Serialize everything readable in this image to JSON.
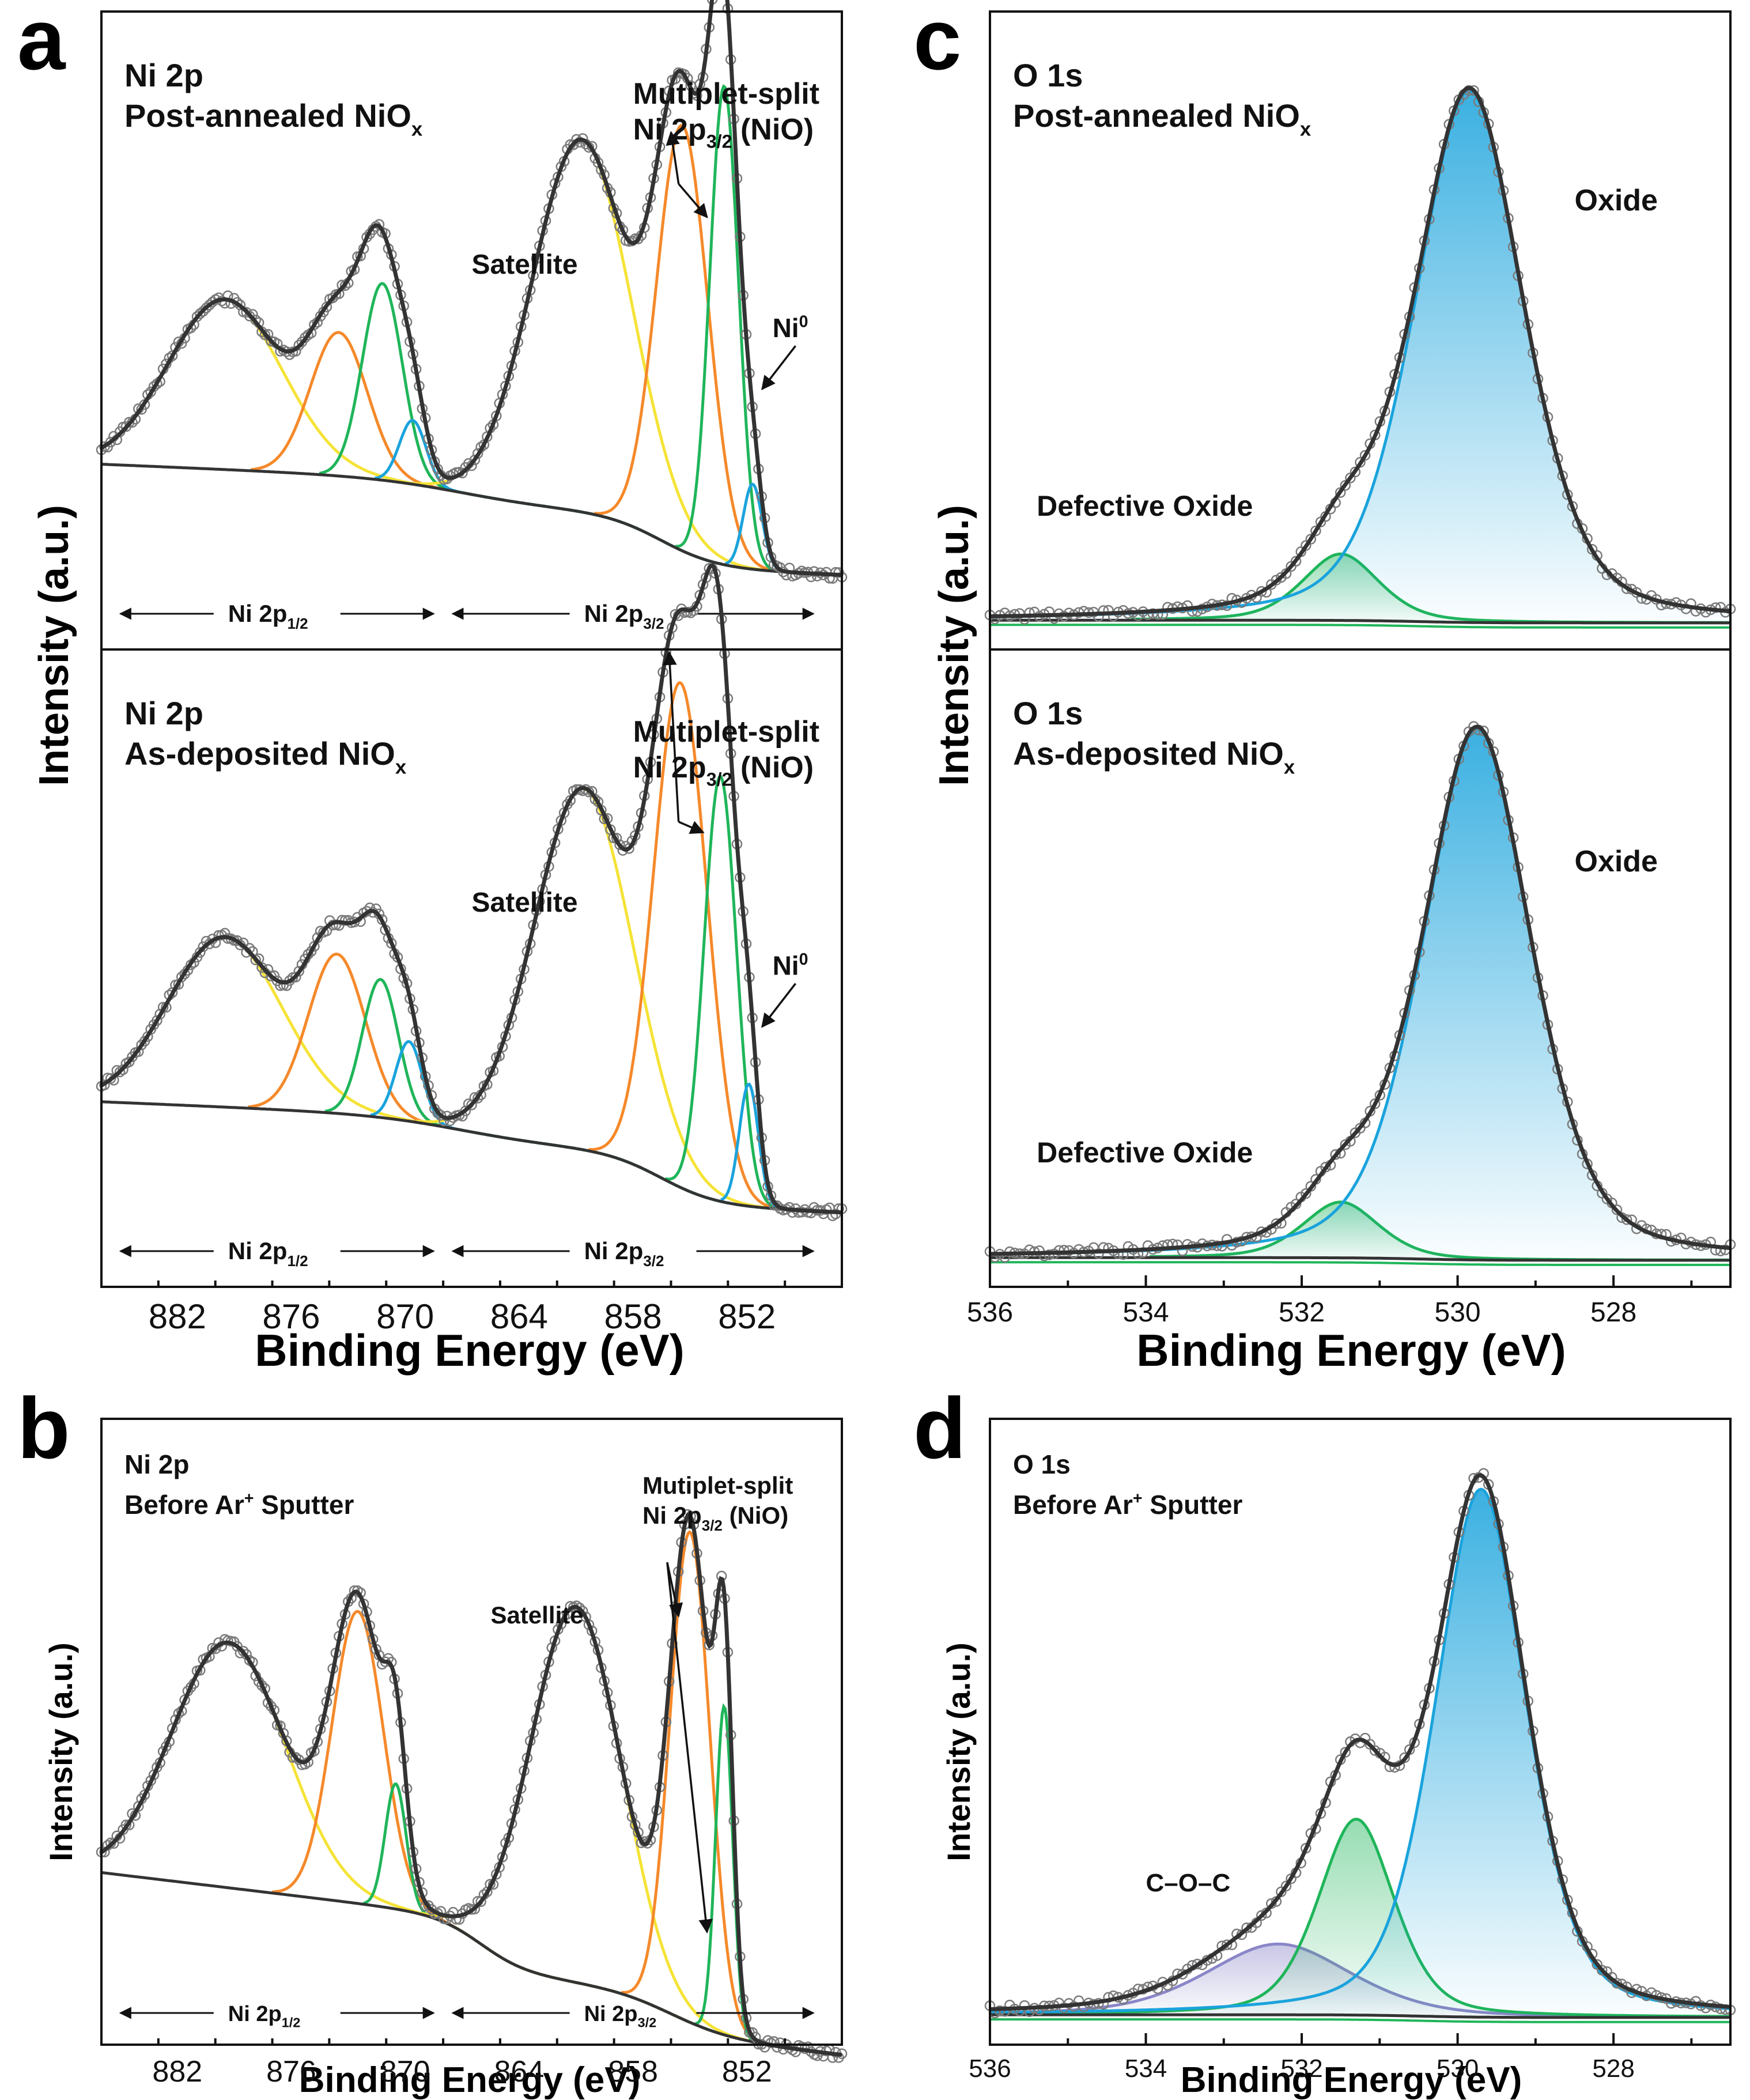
{
  "figure": {
    "panel_letters": [
      "a",
      "b",
      "c",
      "d"
    ],
    "colors": {
      "frame": "#111111",
      "envelope": "#333333",
      "data_circle": "#7a7a7a",
      "yellow": "#f5e336",
      "orange": "#f5892a",
      "green": "#1fb55a",
      "blue": "#1aa3dc",
      "lavender": "#8a86c8",
      "baseline": "#333333"
    }
  },
  "chart_data": [
    {
      "id": "a-top",
      "type": "line",
      "panel": "a",
      "spectrum": "Ni 2p",
      "title_line1": "Ni 2p",
      "title_line2_main": "Post-annealed NiO",
      "title_line2_sub": "x",
      "xlim": [
        886,
        847
      ],
      "ylim": [
        0,
        1.2
      ],
      "show_xticks": false,
      "components": [
        {
          "name": "Ni 2p1/2 satellite",
          "color": "yellow",
          "center": 879.5,
          "amp": 0.32,
          "width": 3.0
        },
        {
          "name": "Ni 2p1/2 multiplet A",
          "color": "orange",
          "center": 873.5,
          "amp": 0.27,
          "width": 1.5
        },
        {
          "name": "Ni 2p1/2 multiplet B",
          "color": "green",
          "center": 871.2,
          "amp": 0.37,
          "width": 1.05
        },
        {
          "name": "Ni 2p1/2 Ni0",
          "color": "blue",
          "center": 869.6,
          "amp": 0.12,
          "width": 0.7
        },
        {
          "name": "Ni 2p3/2 satellite",
          "color": "yellow",
          "center": 860.7,
          "amp": 0.7,
          "width": 2.6
        },
        {
          "name": "Ni 2p3/2 multiplet A",
          "color": "orange",
          "center": 855.4,
          "amp": 0.8,
          "width": 1.35
        },
        {
          "name": "Ni 2p3/2 multiplet B",
          "color": "green",
          "center": 853.2,
          "amp": 0.9,
          "width": 0.75
        },
        {
          "name": "Ni0",
          "color": "blue",
          "center": 851.7,
          "amp": 0.16,
          "width": 0.5
        }
      ],
      "region_labels": [
        {
          "main": "Ni 2p",
          "sub": "1/2",
          "left_be": 885,
          "right_be": 868.5
        },
        {
          "main": "Ni 2p",
          "sub": "3/2",
          "left_be": 867.5,
          "right_be": 848.5
        }
      ],
      "annotations": {
        "multiplet_line1": "Mutiplet-split",
        "multiplet_line2_main": "Ni 2p",
        "multiplet_line2_sub": "3/2",
        "multiplet_line2_tail": " (NiO)",
        "satellite": "Satellite",
        "ni0_main": "Ni",
        "ni0_sup": "0"
      }
    },
    {
      "id": "a-bottom",
      "type": "line",
      "panel": "a",
      "spectrum": "Ni 2p",
      "title_line1": "Ni 2p",
      "title_line2_main": "As-deposited NiO",
      "title_line2_sub": "x",
      "xlim": [
        886,
        847
      ],
      "ylim": [
        0,
        1.2
      ],
      "show_xticks": true,
      "xticks": [
        882,
        876,
        870,
        864,
        858,
        852
      ],
      "xlabel": "Binding Energy (eV)",
      "components": [
        {
          "name": "Ni 2p1/2 satellite",
          "color": "yellow",
          "center": 879.5,
          "amp": 0.32,
          "width": 3.0
        },
        {
          "name": "Ni 2p1/2 multiplet A",
          "color": "orange",
          "center": 873.6,
          "amp": 0.3,
          "width": 1.5
        },
        {
          "name": "Ni 2p1/2 multiplet B",
          "color": "green",
          "center": 871.3,
          "amp": 0.26,
          "width": 0.95
        },
        {
          "name": "Ni 2p1/2 Ni0",
          "color": "blue",
          "center": 869.8,
          "amp": 0.15,
          "width": 0.7
        },
        {
          "name": "Ni 2p3/2 satellite",
          "color": "yellow",
          "center": 860.6,
          "amp": 0.68,
          "width": 2.6
        },
        {
          "name": "Ni 2p3/2 multiplet A",
          "color": "orange",
          "center": 855.5,
          "amp": 0.95,
          "width": 1.4
        },
        {
          "name": "Ni 2p3/2 multiplet B",
          "color": "green",
          "center": 853.4,
          "amp": 0.8,
          "width": 0.85
        },
        {
          "name": "Ni0",
          "color": "blue",
          "center": 851.9,
          "amp": 0.23,
          "width": 0.5
        }
      ],
      "region_labels": [
        {
          "main": "Ni 2p",
          "sub": "1/2",
          "left_be": 885,
          "right_be": 868.5
        },
        {
          "main": "Ni 2p",
          "sub": "3/2",
          "left_be": 867.5,
          "right_be": 848.5
        }
      ],
      "annotations": {
        "multiplet_line1": "Mutiplet-split",
        "multiplet_line2_main": "Ni 2p",
        "multiplet_line2_sub": "3/2",
        "multiplet_line2_tail": " (NiO)",
        "satellite": "Satellite",
        "ni0_main": "Ni",
        "ni0_sup": "0"
      }
    },
    {
      "id": "b",
      "type": "line",
      "panel": "b",
      "spectrum": "Ni 2p",
      "title_line1": "Ni 2p",
      "title_line2_main": "Before Ar",
      "title_line2_sup": "+",
      "title_line2_tail": " Sputter",
      "ylabel": "Intensity (a.u.)",
      "xlim": [
        886,
        847
      ],
      "ylim": [
        0,
        1.2
      ],
      "show_xticks": true,
      "xticks": [
        882,
        876,
        870,
        864,
        858,
        852
      ],
      "xlabel": "Binding Energy (eV)",
      "components": [
        {
          "name": "Ni 2p1/2 satellite",
          "color": "yellow",
          "center": 879.3,
          "amp": 0.47,
          "width": 3.0
        },
        {
          "name": "Ni 2p1/2 multiplet A",
          "color": "orange",
          "center": 872.5,
          "amp": 0.56,
          "width": 1.35
        },
        {
          "name": "Ni 2p1/2 multiplet B",
          "color": "green",
          "center": 870.5,
          "amp": 0.24,
          "width": 0.55
        },
        {
          "name": "Ni 2p3/2 satellite",
          "color": "yellow",
          "center": 861.0,
          "amp": 0.72,
          "width": 2.4
        },
        {
          "name": "Ni 2p3/2 multiplet A",
          "color": "orange",
          "center": 855.0,
          "amp": 0.94,
          "width": 1.05
        },
        {
          "name": "Ni 2p3/2 multiplet B",
          "color": "green",
          "center": 853.2,
          "amp": 0.63,
          "width": 0.45
        }
      ],
      "region_labels": [
        {
          "main": "Ni 2p",
          "sub": "1/2",
          "left_be": 885,
          "right_be": 868.5
        },
        {
          "main": "Ni 2p",
          "sub": "3/2",
          "left_be": 867.5,
          "right_be": 848.5
        }
      ],
      "annotations": {
        "multiplet_line1": "Mutiplet-split",
        "multiplet_line2_main": "Ni 2p",
        "multiplet_line2_sub": "3/2",
        "multiplet_line2_tail": " (NiO)",
        "satellite": "Satellite"
      }
    },
    {
      "id": "c-top",
      "type": "area",
      "panel": "c",
      "spectrum": "O 1s",
      "title_line1": "O 1s",
      "title_line2_main": "Post-annealed NiO",
      "title_line2_sub": "x",
      "xlim": [
        536,
        526.5
      ],
      "ylim": [
        0,
        1.2
      ],
      "show_xticks": false,
      "components": [
        {
          "name": "Defective Oxide",
          "color": "green",
          "center": 531.5,
          "amp": 0.125,
          "width": 0.5
        },
        {
          "name": "Oxide",
          "color": "blue",
          "center": 529.85,
          "amp": 1.0,
          "width": 0.72
        }
      ],
      "annotations": {
        "oxide": "Oxide",
        "defective": "Defective Oxide"
      }
    },
    {
      "id": "c-bottom",
      "type": "area",
      "panel": "c",
      "spectrum": "O 1s",
      "title_line1": "O 1s",
      "title_line2_main": "As-deposited NiO",
      "title_line2_sub": "x",
      "xlim": [
        536,
        526.5
      ],
      "ylim": [
        0,
        1.2
      ],
      "show_xticks": true,
      "xticks": [
        536,
        534,
        532,
        530,
        528
      ],
      "xlabel": "Binding Energy (eV)",
      "components": [
        {
          "name": "Defective Oxide",
          "color": "green",
          "center": 531.5,
          "amp": 0.105,
          "width": 0.5
        },
        {
          "name": "Oxide",
          "color": "blue",
          "center": 529.75,
          "amp": 1.0,
          "width": 0.72
        }
      ],
      "annotations": {
        "oxide": "Oxide",
        "defective": "Defective Oxide"
      }
    },
    {
      "id": "d",
      "type": "area",
      "panel": "d",
      "spectrum": "O 1s",
      "title_line1": "O 1s",
      "title_line2_main": "Before Ar",
      "title_line2_sup": "+",
      "title_line2_tail": " Sputter",
      "ylabel": "Intensity (a.u.)",
      "xlim": [
        536,
        526.5
      ],
      "ylim": [
        0,
        1.15
      ],
      "show_xticks": true,
      "xticks": [
        536,
        534,
        532,
        530,
        528
      ],
      "xlabel": "Binding Energy (eV)",
      "components": [
        {
          "name": "C–O–C",
          "color": "lavender",
          "center": 532.3,
          "amp": 0.13,
          "width": 0.95
        },
        {
          "name": "Defective Oxide",
          "color": "green",
          "center": 531.3,
          "amp": 0.36,
          "width": 0.5
        },
        {
          "name": "Oxide",
          "color": "blue",
          "center": 529.7,
          "amp": 0.97,
          "width": 0.6
        }
      ],
      "annotations": {
        "coc": "C–O–C"
      }
    }
  ],
  "shared": {
    "ylabel_a": "Intensity (a.u.)",
    "ylabel_c": "Intensity (a.u.)"
  }
}
